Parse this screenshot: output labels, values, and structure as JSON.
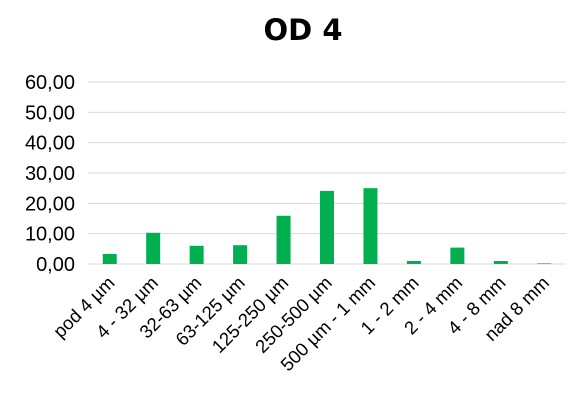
{
  "chart_data": {
    "type": "bar",
    "title": "OD 4",
    "xlabel": "",
    "ylabel": "",
    "categories": [
      "pod 4 µm",
      "4 - 32 µm",
      "32-63 µm",
      "63-125 µm",
      "125-250 µm",
      "250-500 µm",
      "500 µm - 1 mm",
      "1 - 2 mm",
      "2 - 4 mm",
      "4 - 8 mm",
      "nad 8 mm"
    ],
    "values": [
      3.3,
      10.3,
      6.0,
      6.2,
      15.9,
      24.1,
      25.0,
      1.0,
      5.4,
      1.0,
      0.2
    ],
    "ylim": [
      0,
      60
    ],
    "yticks": [
      "0,00",
      "10,00",
      "20,00",
      "30,00",
      "40,00",
      "50,00",
      "60,00"
    ],
    "bar_color": "#00b050",
    "grid": true,
    "legend": "none"
  }
}
